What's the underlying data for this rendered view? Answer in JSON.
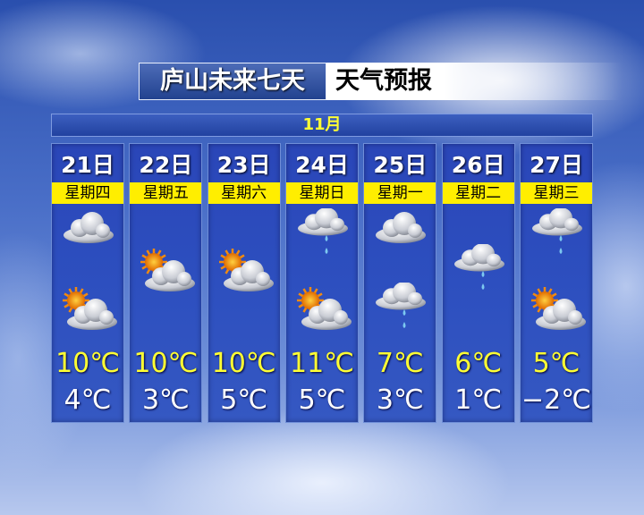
{
  "header": {
    "title": "庐山未来七天",
    "subtitle": "天气预报"
  },
  "month": "11月",
  "days": [
    {
      "date": "21日",
      "weekday": "星期四",
      "icons": [
        "cloudy",
        "partly-cloudy"
      ],
      "high": "10℃",
      "low": "4℃"
    },
    {
      "date": "22日",
      "weekday": "星期五",
      "icons": [
        "partly-cloudy"
      ],
      "high": "10℃",
      "low": "3℃"
    },
    {
      "date": "23日",
      "weekday": "星期六",
      "icons": [
        "partly-cloudy"
      ],
      "high": "10℃",
      "low": "5℃"
    },
    {
      "date": "24日",
      "weekday": "星期日",
      "icons": [
        "cloud-rain",
        "partly-cloudy"
      ],
      "high": "11℃",
      "low": "5℃"
    },
    {
      "date": "25日",
      "weekday": "星期一",
      "icons": [
        "cloudy",
        "cloud-rain"
      ],
      "high": "7℃",
      "low": "3℃"
    },
    {
      "date": "26日",
      "weekday": "星期二",
      "icons": [
        "cloud-rain"
      ],
      "high": "6℃",
      "low": "1℃"
    },
    {
      "date": "27日",
      "weekday": "星期三",
      "icons": [
        "cloud-rain",
        "partly-cloudy"
      ],
      "high": "5℃",
      "low": "−2℃"
    }
  ],
  "colors": {
    "accent_yellow": "#ffee00",
    "panel_blue": "#2d4fbf",
    "sun": "#f08a10"
  }
}
